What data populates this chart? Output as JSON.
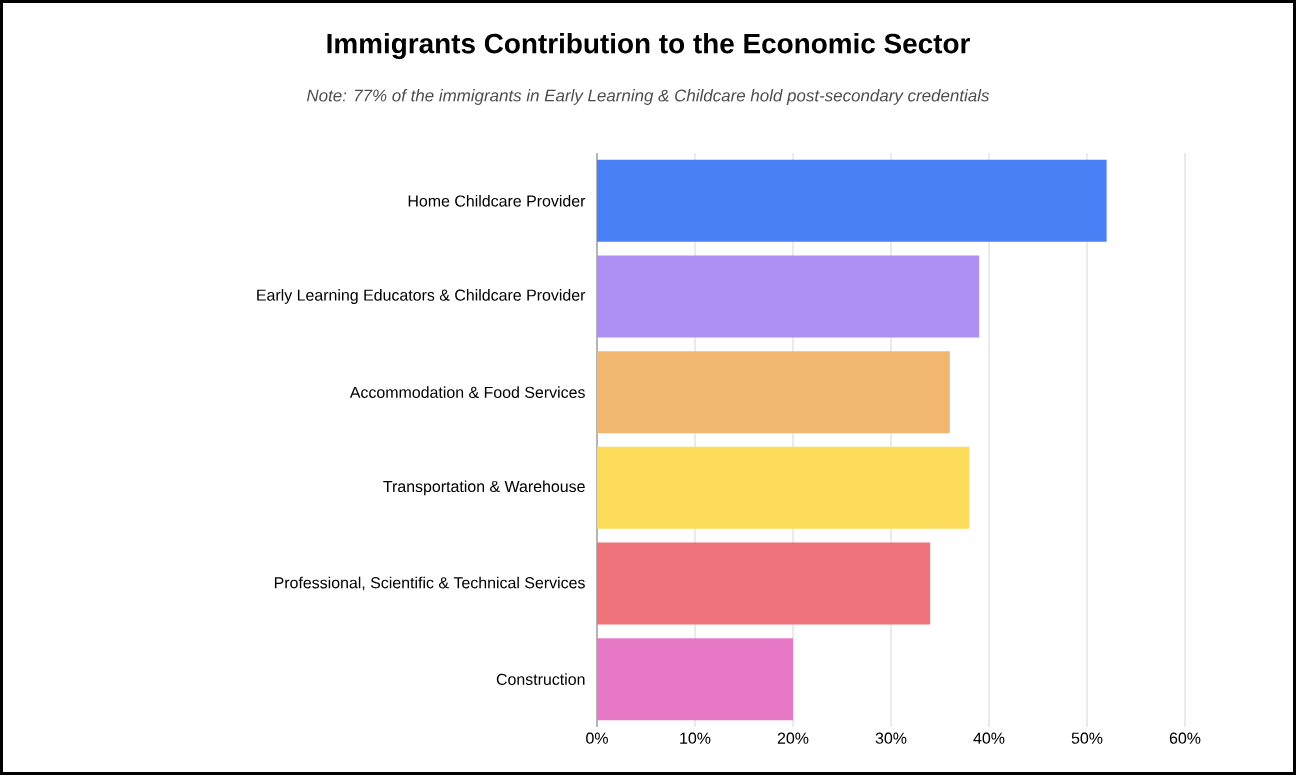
{
  "chart_data": {
    "type": "bar",
    "orientation": "horizontal",
    "title": "Immigrants Contribution to the Economic Sector",
    "subtitle": "Note: 77% of the immigrants in Early Learning & Childcare hold post-secondary credentials",
    "categories": [
      "Home Childcare Provider",
      "Early Learning Educators & Childcare Provider",
      "Accommodation & Food Services",
      "Transportation & Warehouse",
      "Professional, Scientific & Technical Services",
      "Construction"
    ],
    "values": [
      52,
      39,
      36,
      38,
      34,
      20
    ],
    "colors": [
      "#4a80f5",
      "#ae8ff3",
      "#f2b76e",
      "#fddc5c",
      "#ef737b",
      "#e879c6"
    ],
    "xlim": [
      0,
      60
    ],
    "xticks": [
      {
        "value": 0,
        "label": "0%"
      },
      {
        "value": 10,
        "label": "10%"
      },
      {
        "value": 20,
        "label": "20%"
      },
      {
        "value": 30,
        "label": "30%"
      },
      {
        "value": 40,
        "label": "40%"
      },
      {
        "value": 50,
        "label": "50%"
      },
      {
        "value": 60,
        "label": "60%"
      }
    ],
    "grid": "x"
  }
}
